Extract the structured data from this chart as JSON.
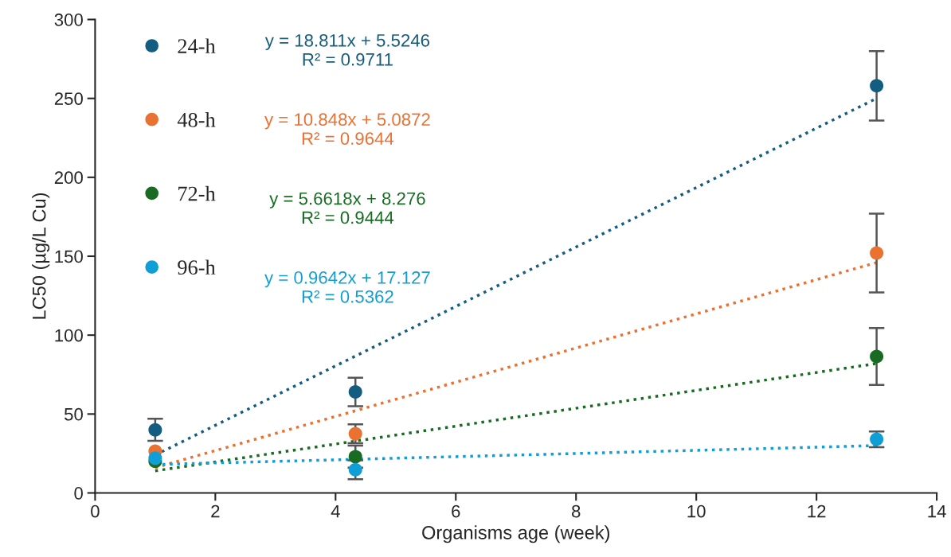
{
  "chart_data": {
    "type": "scatter",
    "xlabel": "Organisms age (week)",
    "ylabel": "LC50 (µg/L Cu)",
    "xlim": [
      0,
      14
    ],
    "xticks": [
      0,
      2,
      4,
      6,
      8,
      10,
      12,
      14
    ],
    "ylim": [
      0,
      300
    ],
    "yticks": [
      0,
      50,
      100,
      150,
      200,
      250,
      300
    ],
    "grid": false,
    "legend": "top left",
    "marker": "circle",
    "series": [
      {
        "name": "24-h",
        "color": "#155d80",
        "x": [
          1,
          4.33,
          13
        ],
        "values": [
          40,
          64,
          258
        ],
        "errors": [
          7,
          9,
          22
        ]
      },
      {
        "name": "48-h",
        "color": "#e97132",
        "x": [
          1,
          4.33,
          13
        ],
        "values": [
          26.5,
          37.5,
          152
        ],
        "errors": [
          null,
          6,
          25
        ]
      },
      {
        "name": "72-h",
        "color": "#196b24",
        "x": [
          1,
          4.33,
          13
        ],
        "values": [
          20,
          23,
          86.5
        ],
        "errors": [
          null,
          7,
          18
        ]
      },
      {
        "name": "96-h",
        "color": "#0f9ed5",
        "x": [
          1,
          4.33,
          13
        ],
        "values": [
          22,
          14.7,
          34
        ],
        "errors": [
          null,
          6,
          5
        ]
      },
      {
        "type": "line",
        "color": "#155d80",
        "x": [
          1,
          13
        ],
        "values": [
          24,
          250
        ],
        "marker": "none",
        "line_style": "dotted"
      },
      {
        "type": "line",
        "color": "#e97132",
        "x": [
          1,
          13
        ],
        "values": [
          16,
          146
        ],
        "marker": "none",
        "line_style": "dotted"
      },
      {
        "type": "line",
        "color": "#196b24",
        "x": [
          1,
          13
        ],
        "values": [
          14,
          82
        ],
        "marker": "none",
        "line_style": "dotted"
      },
      {
        "type": "line",
        "color": "#0f9ed5",
        "x": [
          1,
          13
        ],
        "values": [
          18,
          30
        ],
        "marker": "none",
        "line_style": "dotted"
      }
    ],
    "annotations": [
      "y = 18.811x + 5.5246\nR² = 0.9711",
      "y = 10.848x + 5.0872\nR² = 0.9644",
      "y = 5.6618x + 8.276\nR² = 0.9444",
      "y = 0.9642x + 17.127\nR² = 0.5362"
    ]
  }
}
